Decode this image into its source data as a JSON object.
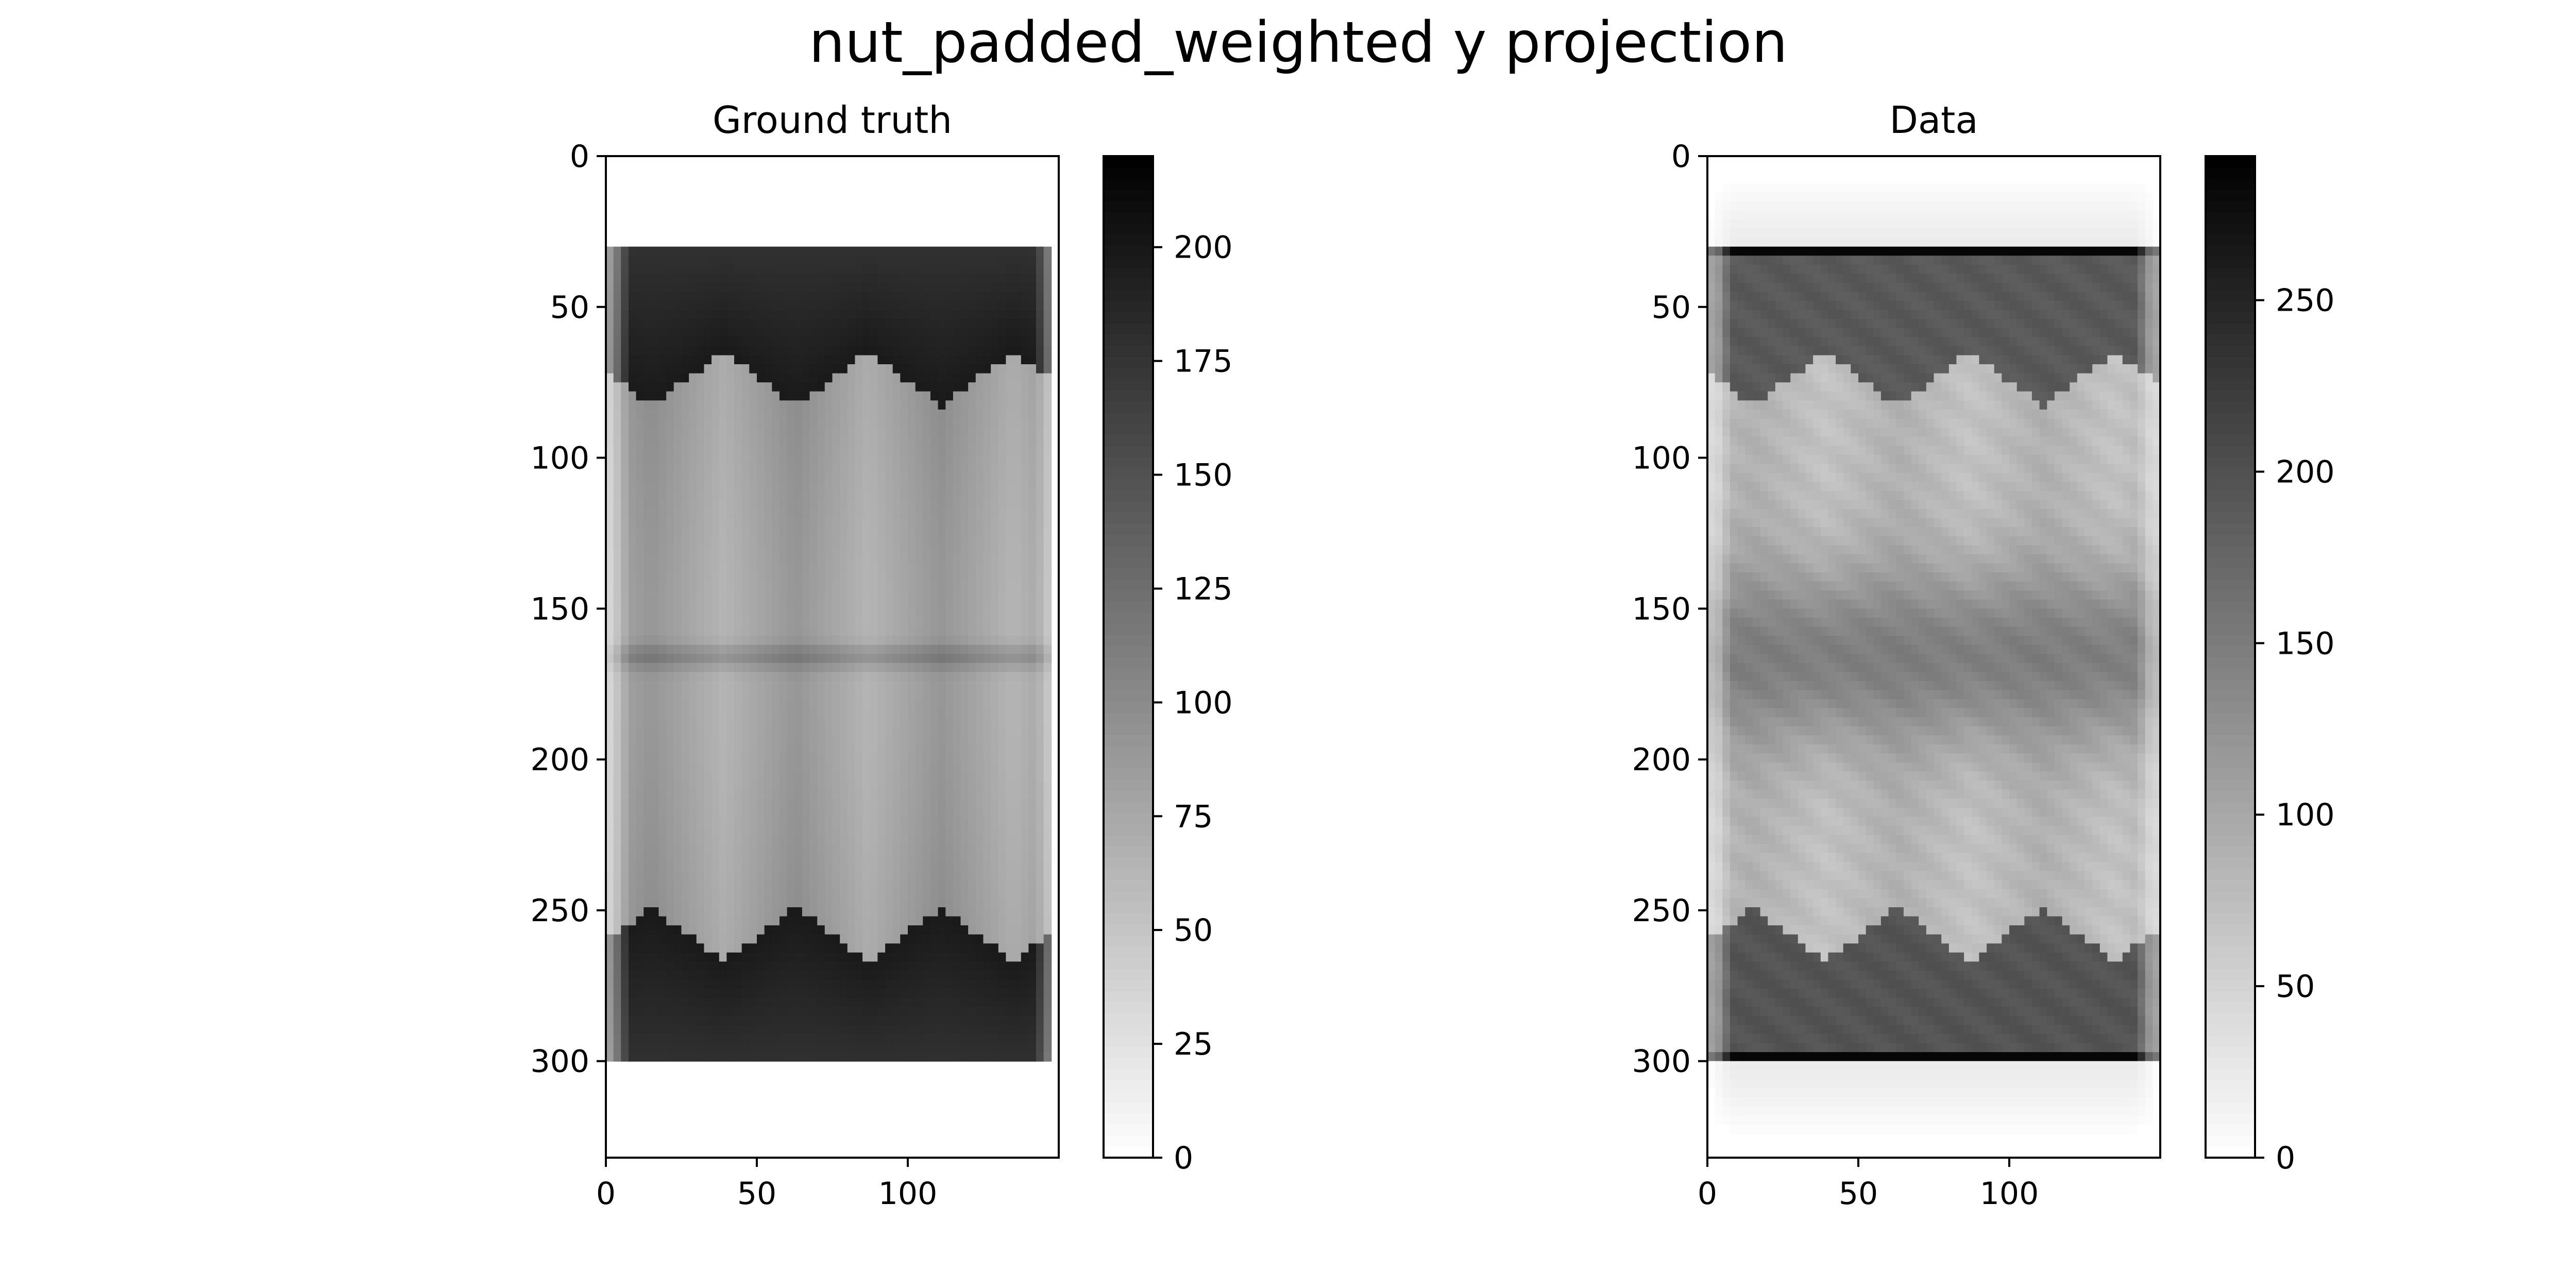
{
  "figure": {
    "suptitle": "nut_padded_weighted y projection"
  },
  "chart_data": [
    {
      "type": "heatmap",
      "title": "Ground truth",
      "xlabel": "",
      "ylabel": "",
      "xlim": [
        0,
        150
      ],
      "ylim": [
        332,
        0
      ],
      "xticks": [
        0,
        50,
        100
      ],
      "yticks": [
        0,
        50,
        100,
        150,
        200,
        250,
        300
      ],
      "colormap": "gray_r",
      "colorbar": {
        "range": [
          0,
          220
        ],
        "ticks": [
          0,
          25,
          50,
          75,
          100,
          125,
          150,
          175,
          200
        ]
      },
      "grid": false,
      "field": {
        "y_range_nonzero": [
          31,
          301
        ],
        "x_range_nonzero": [
          1,
          148
        ],
        "dark_band_value": 190,
        "light_lobe_value": 80,
        "mid_line_value": 120,
        "mid_line_row": 166,
        "triangle_peaks_x": [
          15,
          63,
          111
        ],
        "triangle_valleys_x": [
          39,
          87,
          135
        ]
      }
    },
    {
      "type": "heatmap",
      "title": "Data",
      "xlabel": "",
      "ylabel": "",
      "xlim": [
        0,
        150
      ],
      "ylim": [
        332,
        0
      ],
      "xticks": [
        0,
        50,
        100
      ],
      "yticks": [
        0,
        50,
        100,
        150,
        200,
        250,
        300
      ],
      "colormap": "gray_r",
      "colorbar": {
        "range": [
          0,
          292
        ],
        "ticks": [
          0,
          50,
          100,
          150,
          200,
          250
        ]
      },
      "grid": false,
      "field": {
        "y_range_nonzero": [
          31,
          301
        ],
        "x_range_nonzero": [
          4,
          146
        ],
        "dark_band_value": 195,
        "light_lobe_value": 75,
        "mid_band_value": 155,
        "edge_line_value": 290,
        "halo_value": 20
      }
    }
  ]
}
